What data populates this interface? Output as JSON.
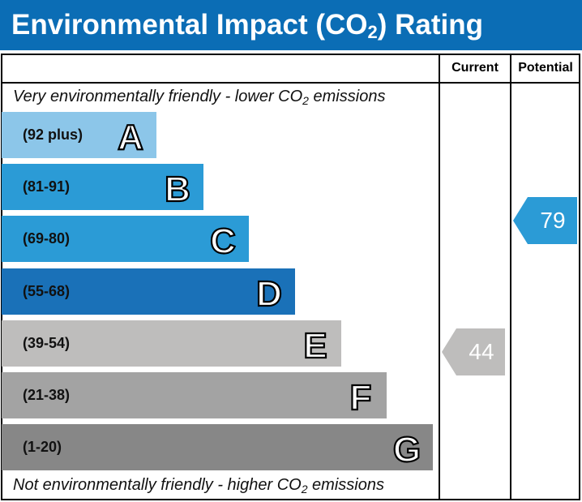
{
  "title": {
    "pre": "Environmental Impact (CO",
    "sub": "2",
    "post": ") Rating"
  },
  "columns": {
    "current": "Current",
    "potential": "Potential"
  },
  "top_note": {
    "pre": "Very environmentally friendly - lower CO",
    "sub": "2",
    "post": " emissions"
  },
  "bottom_note": {
    "pre": "Not environmentally friendly - higher CO",
    "sub": "2",
    "post": " emissions"
  },
  "chart_data": {
    "type": "bar",
    "bands": [
      {
        "letter": "A",
        "range": "(92 plus)",
        "color": "#8cc6e9"
      },
      {
        "letter": "B",
        "range": "(81-91)",
        "color": "#2b9bd6"
      },
      {
        "letter": "C",
        "range": "(69-80)",
        "color": "#2b9bd6"
      },
      {
        "letter": "D",
        "range": "(55-68)",
        "color": "#1a71b8"
      },
      {
        "letter": "E",
        "range": "(39-54)",
        "color": "#bebdbc"
      },
      {
        "letter": "F",
        "range": "(21-38)",
        "color": "#a3a3a3"
      },
      {
        "letter": "G",
        "range": "(1-20)",
        "color": "#878787"
      }
    ],
    "current": {
      "value": "44",
      "band": "E",
      "color": "#bebdbc"
    },
    "potential": {
      "value": "79",
      "band": "C",
      "color": "#2b9bd6"
    }
  }
}
